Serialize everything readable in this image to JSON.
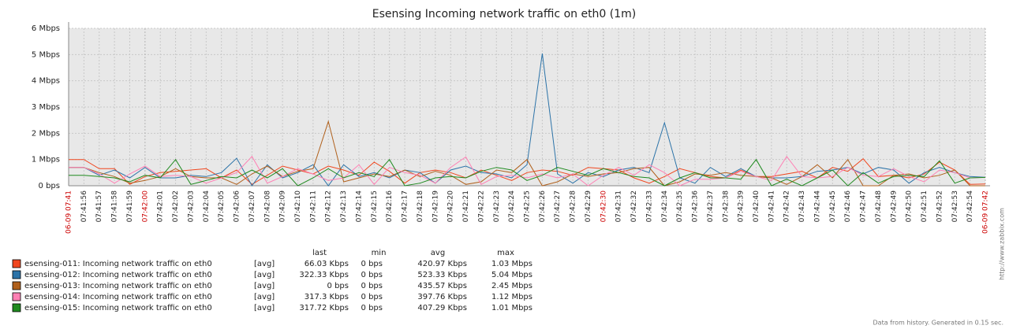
{
  "chart_data": {
    "type": "line",
    "title": "Esensing Incoming network traffic on eth0 (1m)",
    "ylim": [
      0,
      6
    ],
    "yticks": [
      {
        "value": 0,
        "label": "0 bps"
      },
      {
        "value": 1,
        "label": "1 Mbps"
      },
      {
        "value": 2,
        "label": "2 Mbps"
      },
      {
        "value": 3,
        "label": "3 Mbps"
      },
      {
        "value": 4,
        "label": "4 Mbps"
      },
      {
        "value": 5,
        "label": "5 Mbps"
      },
      {
        "value": 6,
        "label": "6 Mbps"
      }
    ],
    "xlim": [
      "07:41:55",
      "07:42:55"
    ],
    "xticks": [
      {
        "value": "07:41:55",
        "label": "06-09 07:41",
        "color": "#cc0000"
      },
      "07:41:56",
      "07:41:57",
      "07:41:58",
      "07:41:59",
      {
        "value": "07:42:00",
        "label": "07:42:00",
        "color": "#cc0000"
      },
      "07:42:01",
      "07:42:02",
      "07:42:03",
      "07:42:04",
      "07:42:05",
      "07:42:06",
      "07:42:07",
      "07:42:08",
      "07:42:09",
      "07:42:10",
      "07:42:11",
      "07:42:12",
      "07:42:13",
      "07:42:14",
      "07:42:15",
      "07:42:16",
      "07:42:17",
      "07:42:18",
      "07:42:19",
      "07:42:20",
      "07:42:21",
      "07:42:22",
      "07:42:23",
      "07:42:24",
      "07:42:25",
      "07:42:26",
      "07:42:27",
      "07:42:28",
      "07:42:29",
      {
        "value": "07:42:30",
        "label": "07:42:30",
        "color": "#cc0000"
      },
      "07:42:31",
      "07:42:32",
      "07:42:33",
      "07:42:34",
      "07:42:35",
      "07:42:36",
      "07:42:37",
      "07:42:38",
      "07:42:39",
      "07:42:40",
      "07:42:41",
      "07:42:42",
      "07:42:43",
      "07:42:44",
      "07:42:45",
      "07:42:46",
      "07:42:47",
      "07:42:48",
      "07:42:49",
      "07:42:50",
      "07:42:51",
      "07:42:52",
      "07:42:53",
      "07:42:54",
      {
        "value": "07:42:55",
        "label": "06-09 07:42",
        "color": "#cc0000"
      }
    ],
    "grid": true,
    "x": [
      "07:41:55",
      "07:41:56",
      "07:41:57",
      "07:41:58",
      "07:41:59",
      "07:42:00",
      "07:42:01",
      "07:42:02",
      "07:42:03",
      "07:42:04",
      "07:42:05",
      "07:42:06",
      "07:42:07",
      "07:42:08",
      "07:42:09",
      "07:42:10",
      "07:42:11",
      "07:42:12",
      "07:42:13",
      "07:42:14",
      "07:42:15",
      "07:42:16",
      "07:42:17",
      "07:42:18",
      "07:42:19",
      "07:42:20",
      "07:42:21",
      "07:42:22",
      "07:42:23",
      "07:42:24",
      "07:42:25",
      "07:42:26",
      "07:42:27",
      "07:42:28",
      "07:42:29",
      "07:42:30",
      "07:42:31",
      "07:42:32",
      "07:42:33",
      "07:42:34",
      "07:42:35",
      "07:42:36",
      "07:42:37",
      "07:42:38",
      "07:42:39",
      "07:42:40",
      "07:42:41",
      "07:42:42",
      "07:42:43",
      "07:42:44",
      "07:42:45",
      "07:42:46",
      "07:42:47",
      "07:42:48",
      "07:42:49",
      "07:42:50",
      "07:42:51",
      "07:42:52",
      "07:42:53",
      "07:42:54",
      "07:42:55"
    ],
    "series": [
      {
        "name": "esensing-011: Incoming network traffic on eth0",
        "color": "#f0461e",
        "values": [
          1.0,
          1.0,
          0.65,
          0.65,
          0.05,
          0.35,
          0.5,
          0.55,
          0.6,
          0.65,
          0.3,
          0.6,
          0.05,
          0.4,
          0.75,
          0.6,
          0.45,
          0.75,
          0.6,
          0.4,
          0.9,
          0.55,
          0.1,
          0.5,
          0.6,
          0.5,
          0.3,
          0.6,
          0.4,
          0.2,
          0.5,
          0.6,
          0.55,
          0.4,
          0.7,
          0.65,
          0.6,
          0.3,
          0.1,
          0.35,
          0.65,
          0.5,
          0.35,
          0.3,
          0.6,
          0.35,
          0.35,
          0.45,
          0.55,
          0.3,
          0.7,
          0.55,
          1.03,
          0.35,
          0.4,
          0.3,
          0.45,
          0.9,
          0.6,
          0.05,
          0.066
        ]
      },
      {
        "name": "esensing-012: Incoming network traffic on eth0",
        "color": "#2c73a8",
        "values": [
          0.7,
          0.7,
          0.4,
          0.6,
          0.3,
          0.7,
          0.3,
          0.3,
          0.4,
          0.35,
          0.5,
          1.05,
          0.0,
          0.8,
          0.3,
          0.5,
          0.8,
          0.0,
          0.8,
          0.35,
          0.5,
          0.3,
          0.6,
          0.5,
          0.1,
          0.6,
          0.75,
          0.5,
          0.45,
          0.3,
          0.8,
          5.04,
          0.45,
          0.1,
          0.5,
          0.35,
          0.6,
          0.7,
          0.5,
          2.4,
          0.3,
          0.1,
          0.7,
          0.35,
          0.65,
          0.35,
          0.3,
          0.3,
          0.35,
          0.55,
          0.6,
          0.7,
          0.45,
          0.7,
          0.6,
          0.1,
          0.5,
          0.7,
          0.5,
          0.35,
          0.32
        ]
      },
      {
        "name": "esensing-013: Incoming network traffic on eth0",
        "color": "#b0601c",
        "values": [
          0.7,
          0.7,
          0.5,
          0.35,
          0.1,
          0.2,
          0.35,
          0.65,
          0.35,
          0.3,
          0.3,
          0.05,
          0.45,
          0.75,
          0.35,
          0.55,
          0.65,
          2.45,
          0.15,
          0.3,
          0.45,
          0.35,
          0.6,
          0.35,
          0.55,
          0.4,
          0.05,
          0.15,
          0.6,
          0.5,
          1.0,
          0.0,
          0.15,
          0.45,
          0.35,
          0.45,
          0.5,
          0.65,
          0.7,
          0.0,
          0.15,
          0.45,
          0.4,
          0.5,
          0.4,
          0.35,
          0.3,
          0.05,
          0.35,
          0.8,
          0.3,
          1.0,
          0.0,
          0.0,
          0.4,
          0.45,
          0.3,
          0.4,
          0.6,
          0.0,
          0.0
        ]
      },
      {
        "name": "esensing-014: Incoming network traffic on eth0",
        "color": "#ff80b4",
        "values": [
          0.7,
          0.7,
          0.45,
          0.1,
          0.45,
          0.75,
          0.35,
          0.4,
          0.35,
          0.1,
          0.3,
          0.5,
          1.12,
          0.1,
          0.35,
          0.65,
          0.45,
          0.2,
          0.3,
          0.8,
          0.05,
          0.7,
          0.5,
          0.4,
          0.1,
          0.7,
          1.1,
          0.05,
          0.35,
          0.4,
          0.3,
          0.45,
          0.3,
          0.45,
          0.0,
          0.4,
          0.7,
          0.4,
          0.8,
          0.5,
          0.0,
          0.25,
          0.25,
          0.3,
          0.55,
          0.35,
          0.2,
          1.12,
          0.35,
          0.3,
          0.35,
          0.7,
          0.4,
          0.35,
          0.65,
          0.35,
          0.15,
          0.6,
          0.5,
          0.3,
          0.317
        ]
      },
      {
        "name": "esensing-015: Incoming network traffic on eth0",
        "color": "#1f8a1f",
        "values": [
          0.4,
          0.4,
          0.35,
          0.3,
          0.15,
          0.4,
          0.3,
          1.0,
          0.05,
          0.2,
          0.35,
          0.3,
          0.6,
          0.3,
          0.65,
          0.0,
          0.3,
          0.65,
          0.3,
          0.5,
          0.35,
          1.0,
          0.0,
          0.1,
          0.3,
          0.35,
          0.3,
          0.55,
          0.7,
          0.6,
          0.2,
          0.4,
          0.7,
          0.55,
          0.4,
          0.65,
          0.5,
          0.35,
          0.3,
          0.0,
          0.3,
          0.5,
          0.3,
          0.3,
          0.25,
          1.0,
          0.0,
          0.25,
          0.0,
          0.3,
          0.6,
          0.0,
          0.5,
          0.1,
          0.35,
          0.4,
          0.35,
          0.95,
          0.1,
          0.3,
          0.318
        ]
      }
    ],
    "legend_table": {
      "header": [
        "last",
        "min",
        "avg",
        "max"
      ],
      "rows": [
        [
          "[avg]",
          "66.03 Kbps",
          "0 bps",
          "420.97 Kbps",
          "1.03 Mbps"
        ],
        [
          "[avg]",
          "322.33 Kbps",
          "0 bps",
          "523.33 Kbps",
          "5.04 Mbps"
        ],
        [
          "[avg]",
          "0 bps",
          "0 bps",
          "435.57 Kbps",
          "2.45 Mbps"
        ],
        [
          "[avg]",
          "317.3 Kbps",
          "0 bps",
          "397.76 Kbps",
          "1.12 Mbps"
        ],
        [
          "[avg]",
          "317.72 Kbps",
          "0 bps",
          "407.29 Kbps",
          "1.01 Mbps"
        ]
      ]
    },
    "watermark": "http://www.zabbix.com",
    "footer": "Data from history. Generated in 0.15 sec."
  }
}
